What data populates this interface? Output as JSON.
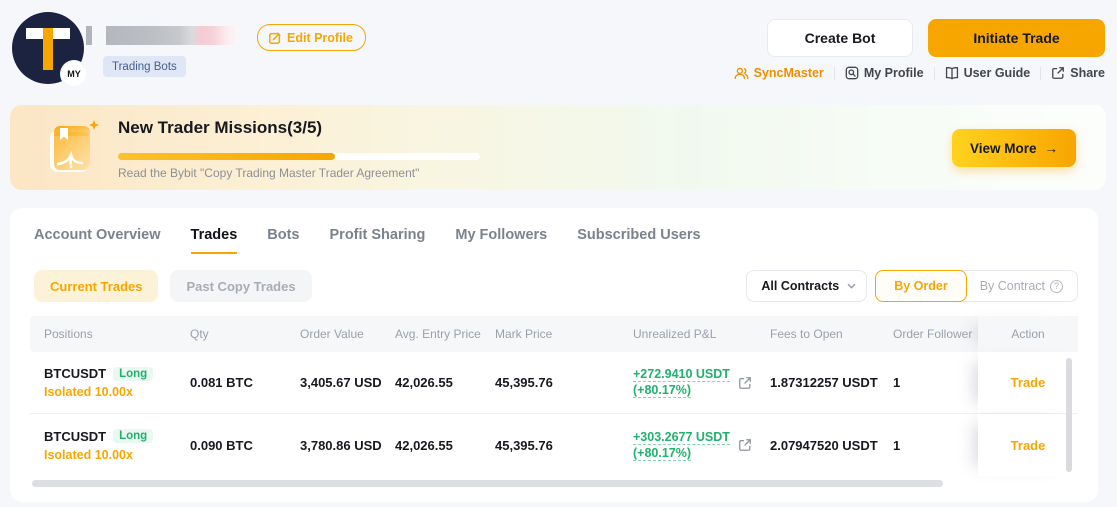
{
  "colors": {
    "accent": "#f7a600",
    "green": "#20b26c",
    "navy_avatar": "#1b2340"
  },
  "header": {
    "avatar_letter": "T",
    "avatar_badge": "MY",
    "edit_profile_label": "Edit Profile",
    "profile_badge": "Trading Bots",
    "create_bot_label": "Create Bot",
    "initiate_trade_label": "Initiate Trade",
    "links": [
      {
        "label": "SyncMaster",
        "icon": "people-icon"
      },
      {
        "label": "My Profile",
        "icon": "profile-search-icon"
      },
      {
        "label": "User Guide",
        "icon": "book-icon"
      },
      {
        "label": "Share",
        "icon": "share-icon"
      }
    ]
  },
  "banner": {
    "title": "New Trader Missions(3/5)",
    "progress_percent": 60,
    "subtitle": "Read the Bybit \"Copy Trading Master Trader Agreement\"",
    "view_more_label": "View More",
    "view_more_arrow": "→"
  },
  "tabs": [
    {
      "label": "Account Overview",
      "active": false
    },
    {
      "label": "Trades",
      "active": true
    },
    {
      "label": "Bots",
      "active": false
    },
    {
      "label": "Profit Sharing",
      "active": false
    },
    {
      "label": "My Followers",
      "active": false
    },
    {
      "label": "Subscribed Users",
      "active": false
    }
  ],
  "subtabs": {
    "current": "Current Trades",
    "past": "Past Copy Trades"
  },
  "filters": {
    "contracts_dropdown": "All Contracts",
    "by_order": "By Order",
    "by_contract": "By Contract",
    "question_mark": "?"
  },
  "table": {
    "columns": [
      "Positions",
      "Qty",
      "Order Value",
      "Avg. Entry Price",
      "Mark Price",
      "Unrealized P&L",
      "Fees to Open",
      "Order Follower",
      "Action"
    ],
    "rows": [
      {
        "symbol": "BTCUSDT",
        "side": "Long",
        "margin": "Isolated 10.00x",
        "qty": "0.081 BTC",
        "order_value": "3,405.67 USDT",
        "avg_entry": "42,026.55",
        "mark_price": "45,395.76",
        "pnl": "+272.9410 USDT",
        "pnl_pct": "(+80.17%)",
        "fees": "1.87312257 USDT",
        "followers": "1",
        "action": "Trade"
      },
      {
        "symbol": "BTCUSDT",
        "side": "Long",
        "margin": "Isolated 10.00x",
        "qty": "0.090 BTC",
        "order_value": "3,780.86 USDT",
        "avg_entry": "42,026.55",
        "mark_price": "45,395.76",
        "pnl": "+303.2677 USDT",
        "pnl_pct": "(+80.17%)",
        "fees": "2.07947520 USDT",
        "followers": "1",
        "action": "Trade"
      }
    ]
  }
}
